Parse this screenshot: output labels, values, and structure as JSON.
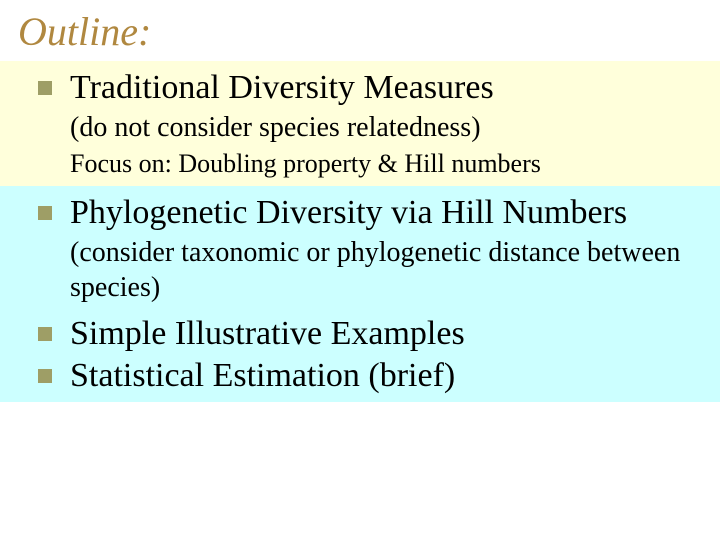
{
  "title": "Outline:",
  "colors": {
    "title_color": "#b08840",
    "bullet_color": "#9e9e66",
    "bg_yellow": "#ffffdb",
    "bg_cyan": "#ccffff",
    "text_color": "#000000",
    "page_bg": "#ffffff"
  },
  "typography": {
    "title_fontsize_pt": 30,
    "title_style": "italic",
    "main_item_fontsize_pt": 26,
    "sub_fontsize_pt": 21,
    "sub2_fontsize_pt": 20,
    "font_family": "Times New Roman"
  },
  "sections": [
    {
      "bg": "yellow",
      "main": "Traditional Diversity Measures",
      "sub": "(do not consider species relatedness)",
      "sub2": "Focus on: Doubling property & Hill numbers"
    },
    {
      "bg": "cyan",
      "main": "Phylogenetic Diversity via Hill Numbers",
      "sub": "(consider taxonomic or phylogenetic distance between species)"
    },
    {
      "bg": "cyan",
      "main": "Simple Illustrative Examples"
    },
    {
      "bg": "cyan",
      "main": "Statistical Estimation (brief)"
    }
  ]
}
